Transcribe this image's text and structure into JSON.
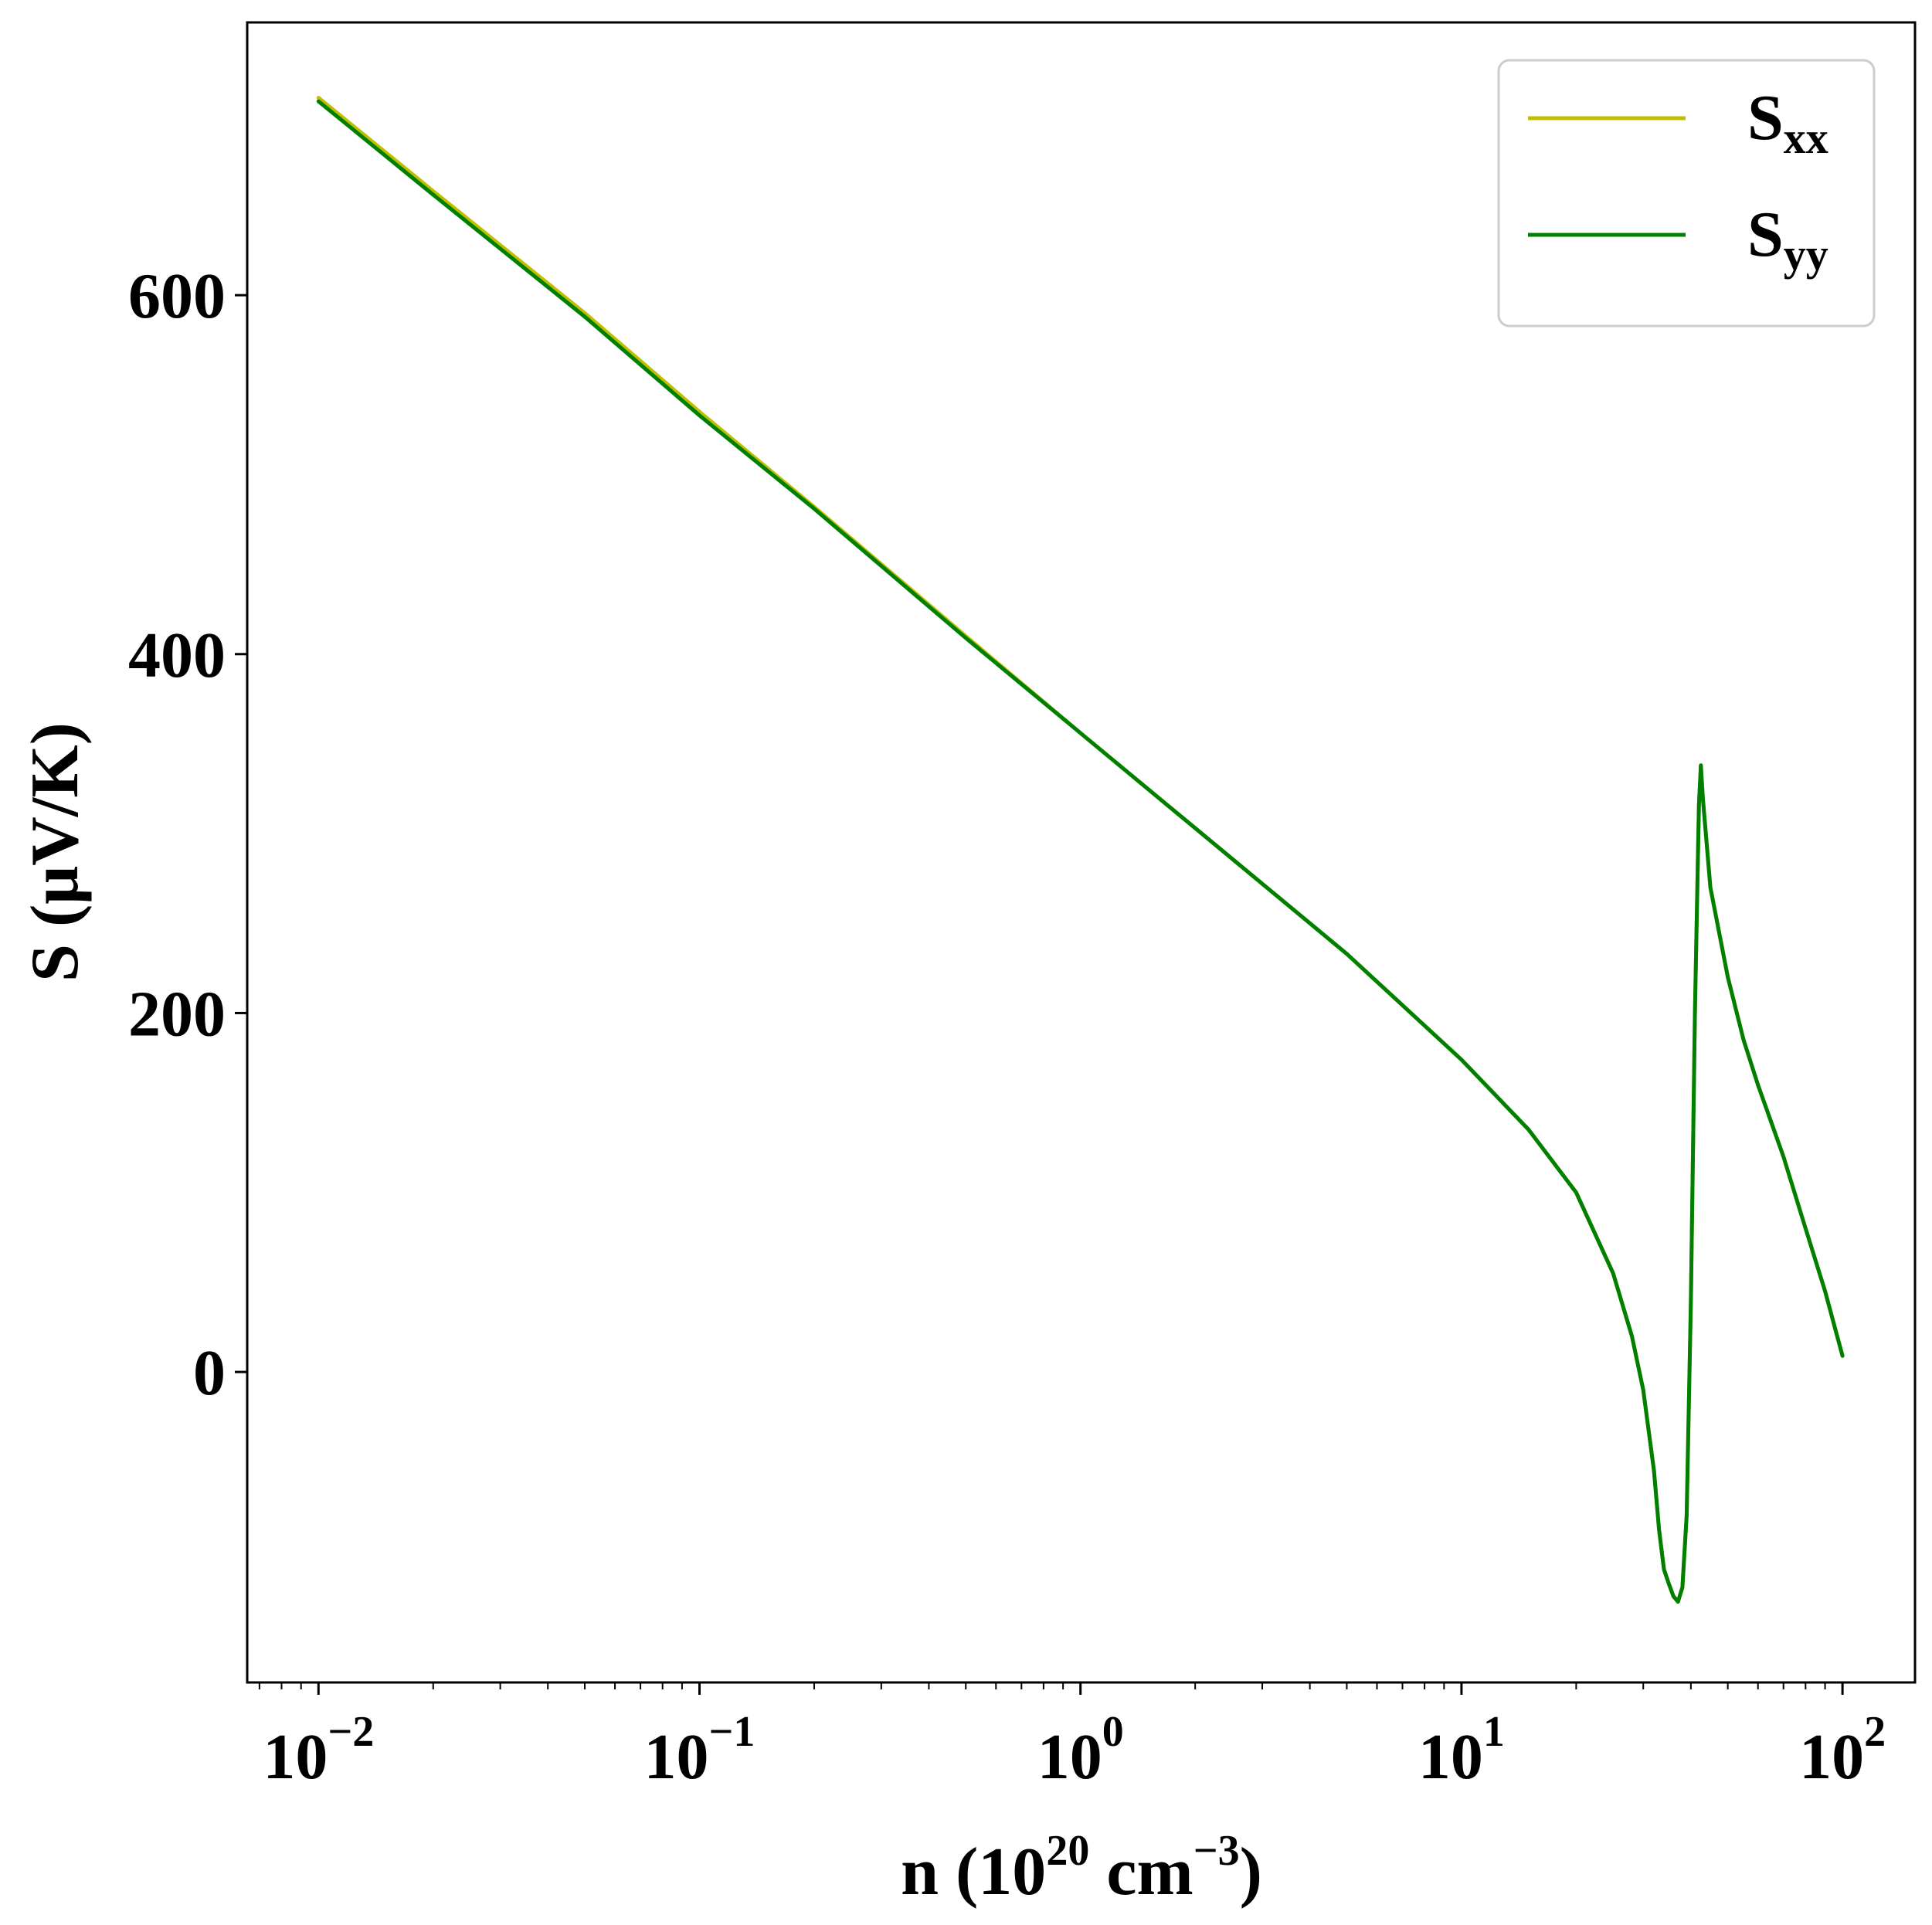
{
  "chart_data": {
    "type": "line",
    "xscale": "log",
    "xlim": [
      0.0065,
      155
    ],
    "ylim": [
      -173,
      752
    ],
    "xlabel": {
      "main": "n (10",
      "exp": "20",
      "mid": " cm",
      "exp2": "−3",
      "end": ")"
    },
    "ylabel": "S (μV/K)",
    "xticks": [
      {
        "value": 0.01,
        "base": "10",
        "exp": "−2"
      },
      {
        "value": 0.1,
        "base": "10",
        "exp": "−1"
      },
      {
        "value": 1,
        "base": "10",
        "exp": "0"
      },
      {
        "value": 10,
        "base": "10",
        "exp": "1"
      },
      {
        "value": 100,
        "base": "10",
        "exp": "2"
      }
    ],
    "yticks": [
      0,
      200,
      400,
      600
    ],
    "grid": false,
    "legend_position": "top-right",
    "series": [
      {
        "name": {
          "base": "S",
          "sub": "xx"
        },
        "color": "#bfbf00",
        "points": [
          [
            0.01,
            710
          ],
          [
            0.02,
            658
          ],
          [
            0.05,
            590
          ],
          [
            0.1,
            535
          ],
          [
            0.2,
            482
          ],
          [
            0.5,
            410
          ],
          [
            1,
            356
          ],
          [
            2,
            303
          ],
          [
            5,
            233
          ],
          [
            10,
            174
          ],
          [
            15,
            135
          ],
          [
            20,
            100
          ],
          [
            25,
            55
          ],
          [
            28,
            20
          ],
          [
            30,
            -10
          ],
          [
            32,
            -55
          ],
          [
            33,
            -88
          ],
          [
            34,
            -110
          ],
          [
            35,
            -118
          ],
          [
            36,
            -125
          ],
          [
            37,
            -128
          ],
          [
            38,
            -120
          ],
          [
            39,
            -80
          ],
          [
            40,
            40
          ],
          [
            41,
            200
          ],
          [
            42,
            316
          ],
          [
            42.5,
            338
          ],
          [
            43,
            320
          ],
          [
            45,
            270
          ],
          [
            50,
            220
          ],
          [
            55,
            185
          ],
          [
            60,
            160
          ],
          [
            70,
            120
          ],
          [
            80,
            80
          ],
          [
            90,
            45
          ],
          [
            100,
            9
          ]
        ]
      },
      {
        "name": {
          "base": "S",
          "sub": "yy"
        },
        "color": "#008000",
        "points": [
          [
            0.01,
            708
          ],
          [
            0.02,
            656
          ],
          [
            0.05,
            588
          ],
          [
            0.1,
            533
          ],
          [
            0.2,
            481
          ],
          [
            0.5,
            409
          ],
          [
            1,
            356
          ],
          [
            2,
            303
          ],
          [
            5,
            233
          ],
          [
            10,
            174
          ],
          [
            15,
            135
          ],
          [
            20,
            100
          ],
          [
            25,
            55
          ],
          [
            28,
            20
          ],
          [
            30,
            -10
          ],
          [
            32,
            -55
          ],
          [
            33,
            -88
          ],
          [
            34,
            -110
          ],
          [
            35,
            -118
          ],
          [
            36,
            -125
          ],
          [
            37,
            -128
          ],
          [
            38,
            -120
          ],
          [
            39,
            -80
          ],
          [
            40,
            40
          ],
          [
            41,
            200
          ],
          [
            42,
            316
          ],
          [
            42.5,
            338
          ],
          [
            43,
            320
          ],
          [
            45,
            270
          ],
          [
            50,
            220
          ],
          [
            55,
            185
          ],
          [
            60,
            160
          ],
          [
            70,
            120
          ],
          [
            80,
            80
          ],
          [
            90,
            45
          ],
          [
            100,
            9
          ]
        ]
      }
    ]
  }
}
